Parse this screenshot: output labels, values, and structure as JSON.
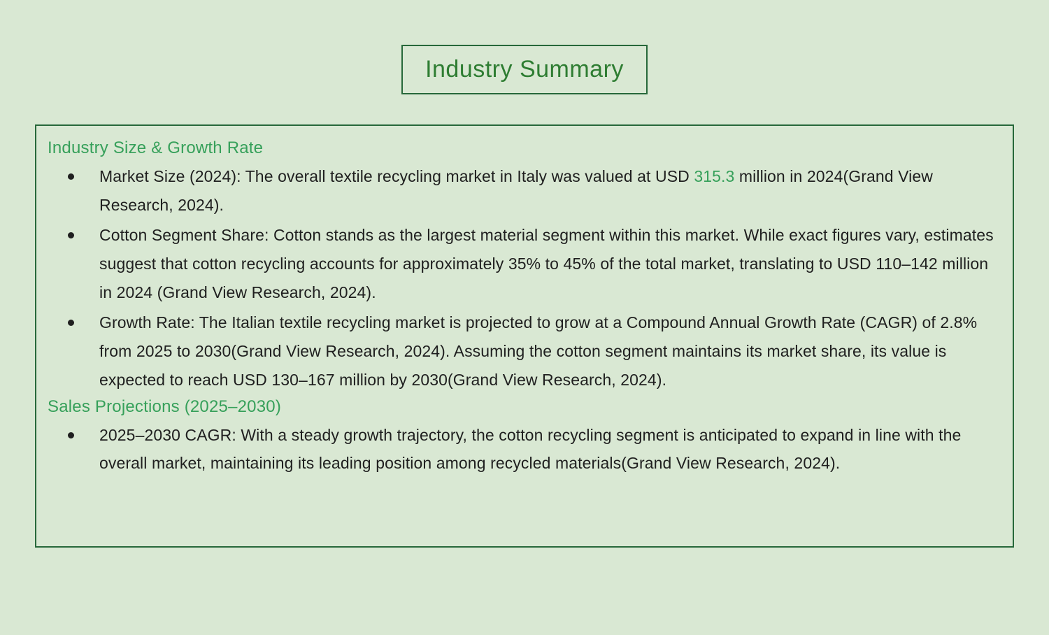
{
  "slide": {
    "title": "Industry Summary"
  },
  "colors": {
    "background": "#d9e8d3",
    "border_green": "#27683a",
    "title_green": "#2e7d32",
    "heading_green": "#36a05a",
    "body_text": "#1f1f1f"
  },
  "sections": [
    {
      "heading": "Industry Size & Growth Rate",
      "bullets": [
        {
          "parts": [
            "Market Size (2024): The overall textile recycling market in Italy was valued at USD ",
            "315.3",
            " million in 2024(Grand View Research, 2024)."
          ]
        },
        {
          "parts": [
            "Cotton Segment Share: Cotton stands as the largest material segment within this market. While exact figures vary, estimates suggest that cotton recycling accounts for approximately 35% to 45% of the total market, translating to USD 110–142 million in 2024 (Grand View Research, 2024)."
          ]
        },
        {
          "parts": [
            "Growth Rate: The Italian textile recycling market is projected to grow at a Compound Annual Growth Rate (CAGR) of 2.8% from 2025 to 2030(Grand View Research, 2024). Assuming the cotton segment maintains its market share, its value is expected to reach USD 130–167 million by 2030(Grand View Research, 2024)."
          ]
        }
      ]
    },
    {
      "heading": "Sales Projections (2025–2030)",
      "bullets": [
        {
          "parts": [
            "2025–2030 CAGR: With a steady growth trajectory, the cotton recycling segment is anticipated to expand in line with the overall market, maintaining its leading position among recycled materials(Grand View Research, 2024)."
          ]
        }
      ]
    }
  ]
}
